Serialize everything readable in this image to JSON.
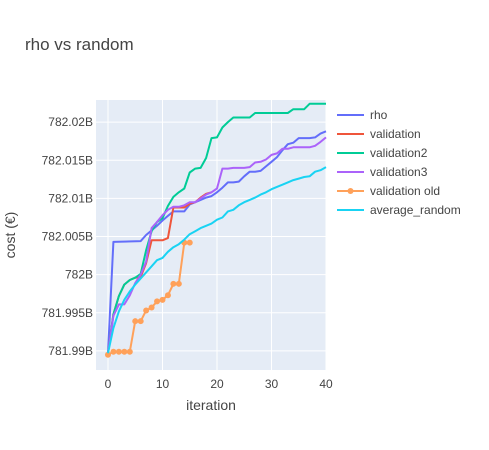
{
  "chart_data": {
    "type": "line",
    "title": "rho vs random",
    "xlabel": "iteration",
    "ylabel": "cost (€)",
    "xlim": [
      -2.2,
      40
    ],
    "ylim": [
      781.9875,
      782.0229
    ],
    "x_ticks": [
      0,
      10,
      20,
      30,
      40
    ],
    "y_ticks": [
      {
        "value": 781.99,
        "label": "781.99B"
      },
      {
        "value": 781.995,
        "label": "781.995B"
      },
      {
        "value": 782.0,
        "label": "782B"
      },
      {
        "value": 782.005,
        "label": "782.005B"
      },
      {
        "value": 782.01,
        "label": "782.01B"
      },
      {
        "value": 782.015,
        "label": "782.015B"
      },
      {
        "value": 782.02,
        "label": "782.02B"
      }
    ],
    "grid": true,
    "legend_position": "right",
    "series": [
      {
        "name": "rho",
        "color": "#636efa",
        "marker": false,
        "x": [
          0,
          1,
          6,
          7,
          8,
          9,
          10,
          11,
          12,
          13,
          14,
          15,
          16,
          17,
          18,
          19,
          20,
          21,
          22,
          23,
          24,
          25,
          26,
          27,
          28,
          29,
          30,
          31,
          32,
          33,
          34,
          35,
          36,
          37,
          38,
          39,
          40
        ],
        "y": [
          781.9897,
          782.0043,
          782.0044,
          782.0052,
          782.0058,
          782.0064,
          782.0071,
          782.0077,
          782.0083,
          782.0083,
          782.0083,
          782.0092,
          782.0095,
          782.0098,
          782.0101,
          782.0103,
          782.0108,
          782.0114,
          782.0121,
          782.0121,
          782.0122,
          782.0129,
          782.0135,
          782.0135,
          782.0136,
          782.0142,
          782.0148,
          782.0154,
          782.0163,
          782.0171,
          782.0173,
          782.0179,
          782.0179,
          782.0179,
          782.018,
          782.0185,
          782.0188
        ]
      },
      {
        "name": "validation",
        "color": "#ef553b",
        "marker": false,
        "x": [
          0,
          1,
          2,
          3,
          4,
          5,
          6,
          7,
          8,
          9,
          10,
          11,
          12,
          13,
          14,
          15,
          16,
          17,
          18,
          19
        ],
        "y": [
          781.9897,
          781.9948,
          781.9972,
          781.9987,
          781.9993,
          781.9996,
          781.9997,
          782.0015,
          782.0045,
          782.0045,
          782.0045,
          782.0048,
          782.0088,
          782.0088,
          782.0088,
          782.0093,
          782.0095,
          782.0101,
          782.0106,
          782.0108
        ]
      },
      {
        "name": "validation2",
        "color": "#00cc96",
        "marker": false,
        "x": [
          0,
          1,
          2,
          3,
          4,
          5,
          6,
          7,
          8,
          9,
          10,
          11,
          12,
          13,
          14,
          15,
          16,
          17,
          18,
          19,
          20,
          21,
          22,
          23,
          24,
          25,
          26,
          27,
          28,
          29,
          30,
          31,
          32,
          33,
          34,
          35,
          36,
          37,
          38,
          39,
          40
        ],
        "y": [
          781.9897,
          781.9948,
          781.9972,
          781.9987,
          781.9993,
          781.9996,
          782.0001,
          782.0032,
          782.0057,
          782.0069,
          782.0074,
          782.009,
          782.0102,
          782.0108,
          782.0113,
          782.0134,
          782.0139,
          782.014,
          782.0153,
          782.0179,
          782.018,
          782.0193,
          782.02,
          782.0206,
          782.0206,
          782.0206,
          782.0206,
          782.0212,
          782.0212,
          782.0212,
          782.0212,
          782.0212,
          782.0212,
          782.0212,
          782.0217,
          782.0217,
          782.0217,
          782.0224,
          782.0224,
          782.0224,
          782.0224
        ]
      },
      {
        "name": "validation3",
        "color": "#ab63fa",
        "marker": false,
        "x": [
          0,
          1,
          2,
          3,
          4,
          5,
          6,
          7,
          8,
          9,
          10,
          11,
          12,
          13,
          14,
          15,
          16,
          17,
          18,
          19,
          20,
          21,
          22,
          23,
          24,
          25,
          26,
          27,
          28,
          29,
          30,
          31,
          32,
          33,
          34,
          35,
          36,
          37,
          38,
          39,
          40
        ],
        "y": [
          781.9897,
          781.9946,
          781.9961,
          781.9961,
          781.9973,
          781.9989,
          782.0,
          782.0017,
          782.0061,
          782.0069,
          782.0078,
          782.0085,
          782.0089,
          782.0089,
          782.0091,
          782.0095,
          782.0095,
          782.01,
          782.0105,
          782.0108,
          782.0113,
          782.0139,
          782.0139,
          782.014,
          782.014,
          782.014,
          782.0141,
          782.0147,
          782.0148,
          782.0151,
          782.0157,
          782.0159,
          782.0165,
          782.0165,
          782.0167,
          782.0167,
          782.0167,
          782.0167,
          782.0169,
          782.0174,
          782.018
        ]
      },
      {
        "name": "validation old",
        "color": "#ffa15a",
        "marker": true,
        "x": [
          0,
          1,
          2,
          3,
          4,
          5,
          6,
          7,
          8,
          9,
          10,
          11,
          12,
          13,
          14,
          15
        ],
        "y": [
          781.9895,
          781.9899,
          781.9899,
          781.9899,
          781.9899,
          781.9939,
          781.9939,
          781.9953,
          781.9957,
          781.9965,
          781.9967,
          781.9973,
          781.9988,
          781.9988,
          782.0042,
          782.0042
        ]
      },
      {
        "name": "average_random",
        "color": "#19d3f3",
        "marker": false,
        "x": [
          0,
          1,
          2,
          3,
          4,
          5,
          6,
          7,
          8,
          9,
          10,
          11,
          12,
          13,
          14,
          15,
          16,
          17,
          18,
          19,
          20,
          21,
          22,
          23,
          24,
          25,
          26,
          27,
          28,
          29,
          30,
          31,
          32,
          33,
          34,
          35,
          36,
          37,
          38,
          39,
          40
        ],
        "y": [
          781.9897,
          781.993,
          781.9952,
          781.9967,
          781.9978,
          781.9987,
          781.9995,
          782.0003,
          782.0011,
          782.0019,
          782.0022,
          782.003,
          782.0036,
          782.004,
          782.0046,
          782.0053,
          782.0057,
          782.0061,
          782.0064,
          782.0067,
          782.0072,
          782.0075,
          782.0083,
          782.0085,
          782.0091,
          782.0095,
          782.0098,
          782.0101,
          782.0105,
          782.0108,
          782.0112,
          782.0115,
          782.0118,
          782.0121,
          782.0124,
          782.0126,
          782.0128,
          782.0129,
          782.0135,
          782.0137,
          782.0141
        ]
      }
    ]
  }
}
